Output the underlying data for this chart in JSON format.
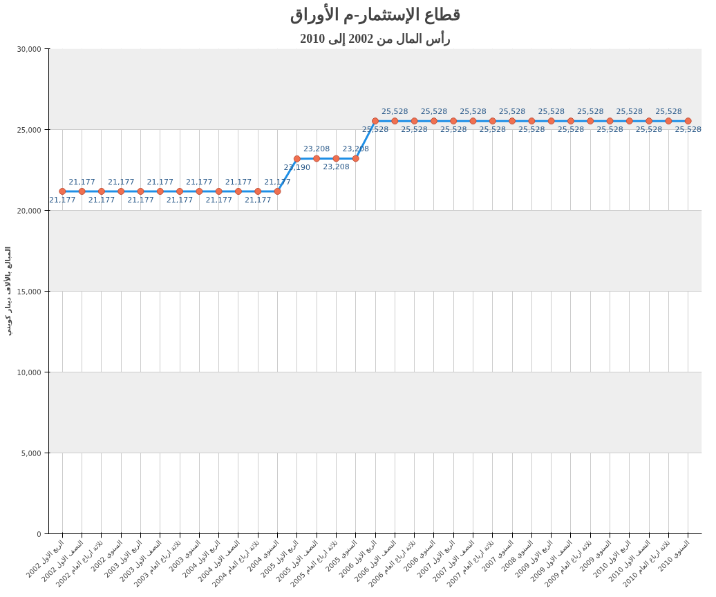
{
  "chart_data": {
    "type": "line",
    "title": "قطاع الإستثمار-م الأوراق",
    "subtitle": "رأس المال من 2002 إلى 2010",
    "ylabel": "المبالغ بالألاف دينار كويتي",
    "categories": [
      "الربع الاول 2002",
      "النصف الاول 2002",
      "ثلاثة ارباع العام 2002",
      "السنوي 2002",
      "الربع الاول 2003",
      "النصف الاول 2003",
      "ثلاثة ارباع العام 2003",
      "السنوي 2003",
      "الربع الاول 2004",
      "النصف الاول 2004",
      "ثلاثة ارباع العام 2004",
      "السنوي 2004",
      "الربع الاول 2005",
      "النصف الاول 2005",
      "ثلاثة ارباع العام 2005",
      "السنوي 2005",
      "الربع الاول 2006",
      "النصف الاول 2006",
      "ثلاثة ارباع العام 2006",
      "السنوي 2006",
      "الربع الاول 2007",
      "النصف الاول 2007",
      "ثلاثة ارباع العام 2007",
      "السنوي 2007",
      "السنوي 2008",
      "الربع الاول 2009",
      "النصف الاول 2009",
      "ثلاثة ارباع العام 2009",
      "السنوي 2009",
      "الربع الاول 2010",
      "النصف الاول 2010",
      "ثلاثة ارباع العام 2010",
      "السنوي 2010"
    ],
    "series": [
      {
        "color": "#1f8fe6",
        "values": [
          21177,
          21177,
          21177,
          21177,
          21177,
          21177,
          21177,
          21177,
          21177,
          21177,
          21177,
          21177,
          23190,
          23208,
          23208,
          23208,
          25528,
          25528,
          25528,
          25528,
          25528,
          25528,
          25528,
          25528,
          25528,
          25528,
          25528,
          25528,
          25528,
          25528,
          25528,
          25528,
          25528
        ],
        "value_labels": [
          "21,177",
          "21,177",
          "21,177",
          "21,177",
          "21,177",
          "21,177",
          "21,177",
          "21,177",
          "21,177",
          "21,177",
          "21,177",
          "21,177",
          "23,190",
          "23,208",
          "23,208",
          "23,208",
          "25,528",
          "25,528",
          "25,528",
          "25,528",
          "25,528",
          "25,528",
          "25,528",
          "25,528",
          "25,528",
          "25,528",
          "25,528",
          "25,528",
          "25,528",
          "25,528",
          "25,528",
          "25,528",
          "25,528"
        ]
      }
    ],
    "ylim": [
      0,
      30000
    ],
    "yticks": [
      {
        "value": 0,
        "label": "0"
      },
      {
        "value": 5000,
        "label": "5,000"
      },
      {
        "value": 10000,
        "label": "10,000"
      },
      {
        "value": 15000,
        "label": "15,000"
      },
      {
        "value": 20000,
        "label": "20,000"
      },
      {
        "value": 25000,
        "label": "25,000"
      },
      {
        "value": 30000,
        "label": "30,000"
      }
    ],
    "grid": true,
    "marker": "circle",
    "line_style": "solid"
  }
}
